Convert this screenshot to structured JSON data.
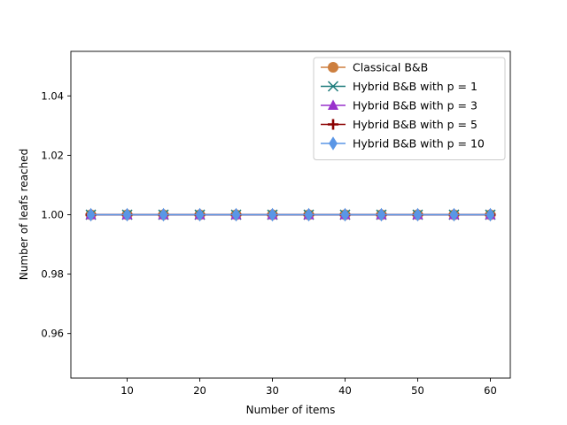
{
  "chart_data": {
    "type": "line",
    "xlabel": "Number of items",
    "ylabel": "Number of leafs reached",
    "xlim": [
      2.25,
      62.75
    ],
    "ylim": [
      0.945,
      1.055
    ],
    "xticks": [
      10,
      20,
      30,
      40,
      50,
      60
    ],
    "xtick_labels": [
      "10",
      "20",
      "30",
      "40",
      "50",
      "60"
    ],
    "yticks": [
      0.96,
      0.98,
      1.0,
      1.02,
      1.04
    ],
    "ytick_labels": [
      "0.96",
      "0.98",
      "1.00",
      "1.02",
      "1.04"
    ],
    "grid": false,
    "legend_position": "top-right",
    "x": [
      5,
      10,
      15,
      20,
      25,
      30,
      35,
      40,
      45,
      50,
      55,
      60
    ],
    "series": [
      {
        "name": "Classical B&B",
        "color": "#cd7f3f",
        "marker": "circle",
        "values": [
          1,
          1,
          1,
          1,
          1,
          1,
          1,
          1,
          1,
          1,
          1,
          1
        ]
      },
      {
        "name": "Hybrid B&B with p = 1",
        "color": "#1b7a7a",
        "marker": "x",
        "values": [
          1,
          1,
          1,
          1,
          1,
          1,
          1,
          1,
          1,
          1,
          1,
          1
        ]
      },
      {
        "name": "Hybrid B&B with p = 3",
        "color": "#9932cc",
        "marker": "triangle",
        "values": [
          1,
          1,
          1,
          1,
          1,
          1,
          1,
          1,
          1,
          1,
          1,
          1
        ]
      },
      {
        "name": "Hybrid B&B with p = 5",
        "color": "#8b0000",
        "marker": "plus",
        "values": [
          1,
          1,
          1,
          1,
          1,
          1,
          1,
          1,
          1,
          1,
          1,
          1
        ]
      },
      {
        "name": "Hybrid B&B with p = 10",
        "color": "#5a96e6",
        "marker": "diamond",
        "values": [
          1,
          1,
          1,
          1,
          1,
          1,
          1,
          1,
          1,
          1,
          1,
          1
        ]
      }
    ]
  }
}
